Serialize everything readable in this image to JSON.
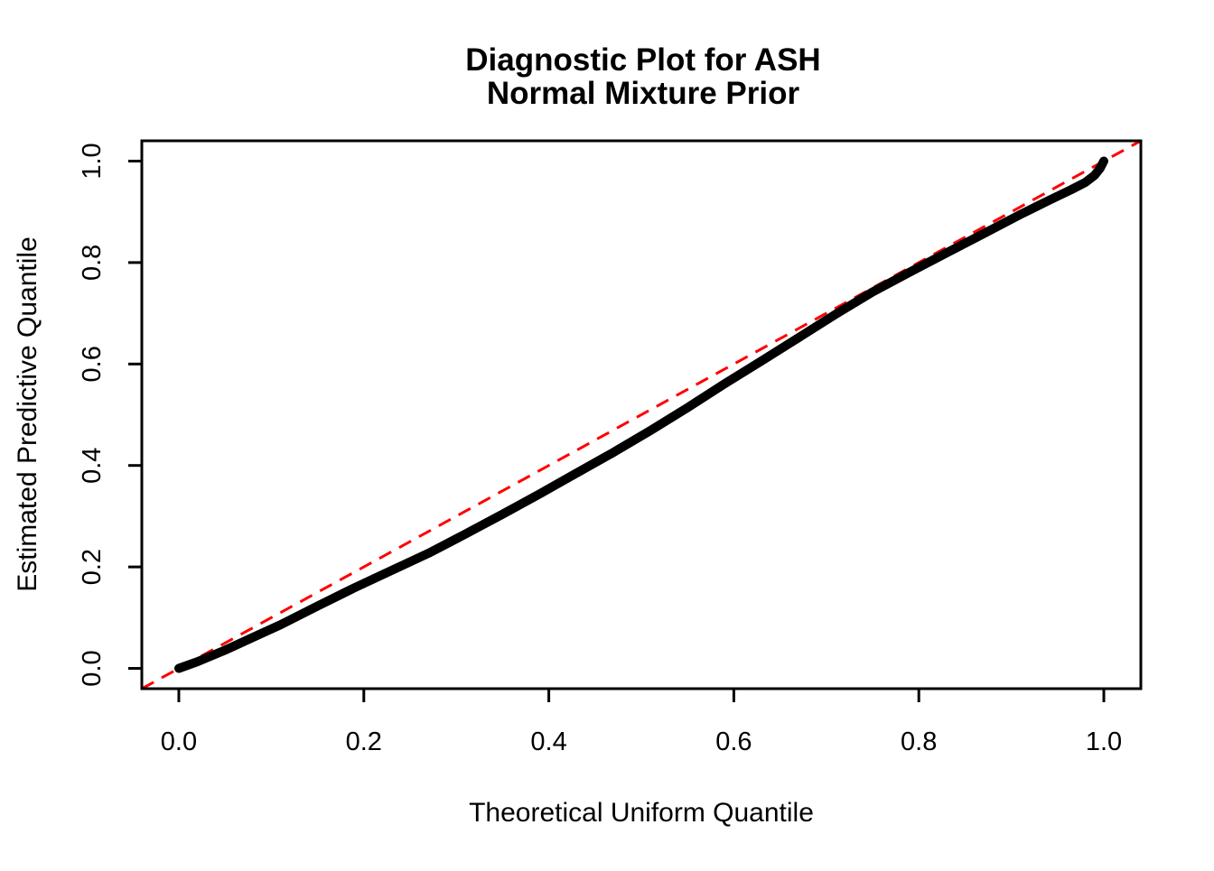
{
  "title": {
    "line1": "Diagnostic Plot for ASH",
    "line2": "Normal Mixture Prior"
  },
  "chart_data": {
    "type": "line",
    "title": "Diagnostic Plot for ASH\nNormal Mixture Prior",
    "xlabel": "Theoretical Uniform Quantile",
    "ylabel": "Estimated Predictive Quantile",
    "xlim": [
      -0.04,
      1.04
    ],
    "ylim": [
      -0.04,
      1.04
    ],
    "grid": false,
    "legend": "none",
    "x_ticks": {
      "values": [
        0.0,
        0.2,
        0.4,
        0.6,
        0.8,
        1.0
      ],
      "labels": [
        "0.0",
        "0.2",
        "0.4",
        "0.6",
        "0.8",
        "1.0"
      ]
    },
    "y_ticks": {
      "values": [
        0.0,
        0.2,
        0.4,
        0.6,
        0.8,
        1.0
      ],
      "labels": [
        "0.0",
        "0.2",
        "0.4",
        "0.6",
        "0.8",
        "1.0"
      ]
    },
    "colors": {
      "curve": "#000000",
      "reference": "#FF0000",
      "axis": "#000000",
      "background": "#FFFFFF"
    },
    "series": [
      {
        "name": "estimated-vs-theoretical-quantiles",
        "kind": "qq-curve",
        "color": "#000000",
        "stroke_width": 10,
        "x": [
          0.0,
          0.02,
          0.05,
          0.08,
          0.11,
          0.15,
          0.19,
          0.23,
          0.27,
          0.31,
          0.35,
          0.39,
          0.43,
          0.47,
          0.51,
          0.55,
          0.59,
          0.63,
          0.67,
          0.71,
          0.75,
          0.79,
          0.83,
          0.87,
          0.91,
          0.94,
          0.965,
          0.98,
          0.99,
          0.996,
          1.0
        ],
        "y": [
          0.0,
          0.013,
          0.036,
          0.061,
          0.086,
          0.123,
          0.159,
          0.193,
          0.227,
          0.265,
          0.304,
          0.344,
          0.385,
          0.426,
          0.469,
          0.514,
          0.561,
          0.606,
          0.652,
          0.698,
          0.742,
          0.781,
          0.819,
          0.857,
          0.895,
          0.922,
          0.944,
          0.958,
          0.972,
          0.986,
          1.0
        ]
      },
      {
        "name": "identity-reference-line",
        "kind": "abline-0-1",
        "color": "#FF0000",
        "stroke_width": 3,
        "dash": [
          15,
          10
        ],
        "x": [
          -0.04,
          1.04
        ],
        "y": [
          -0.04,
          1.04
        ]
      }
    ]
  }
}
